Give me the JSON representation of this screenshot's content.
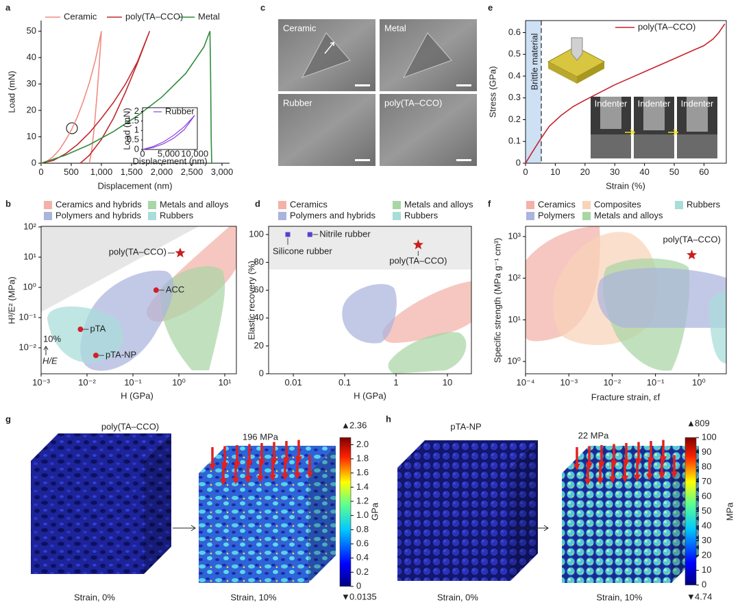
{
  "chart_data": [
    {
      "type": "line",
      "xlabel": "Displacement (nm)",
      "ylabel": "Load (mN)",
      "xlim": [
        0,
        3125
      ],
      "ylim": [
        0,
        54
      ],
      "xticks": [
        0,
        500,
        {
          "value": 1000,
          "label": "1,000"
        },
        {
          "value": 1500,
          "label": "1,500"
        },
        {
          "value": 2000,
          "label": "2,000"
        },
        {
          "value": 2500,
          "label": "2,500"
        },
        {
          "value": 3000,
          "label": "3,000"
        }
      ],
      "yticks": [
        0,
        10,
        20,
        30,
        40,
        50
      ],
      "series": [
        {
          "name": "Ceramic",
          "color": "#f08c82",
          "x": [
            0,
            100,
            200,
            300,
            400,
            500,
            600,
            700,
            800,
            900,
            1000,
            960,
            920,
            880,
            840,
            800
          ],
          "values": [
            0,
            0.8,
            2.5,
            5,
            8.5,
            12.5,
            17.5,
            23.5,
            30.5,
            39,
            50,
            36,
            24,
            13,
            5,
            0
          ]
        },
        {
          "name": "poly(TA–CCO)",
          "color": "#c0282d",
          "x": [
            0,
            200,
            400,
            600,
            800,
            1000,
            1200,
            1400,
            1600,
            1800,
            1600,
            1400,
            1200,
            1000,
            800,
            650
          ],
          "values": [
            0,
            1,
            3.5,
            7,
            11.5,
            17,
            23,
            30,
            38.5,
            50,
            38,
            27,
            17,
            9,
            3,
            0
          ]
        },
        {
          "name": "Metal",
          "color": "#2e8b3a",
          "x": [
            0,
            400,
            800,
            1200,
            1600,
            2000,
            2400,
            2700,
            2800,
            2810,
            2820,
            2830
          ],
          "values": [
            0,
            3,
            7,
            12,
            18,
            25,
            34,
            44,
            50,
            35,
            10,
            0
          ]
        }
      ]
    },
    {
      "type": "line",
      "xlabel": "Displacement (nm)",
      "ylabel": "Load (mN)",
      "xlim": [
        0,
        10500
      ],
      "ylim": [
        0,
        2.2
      ],
      "xticks": [
        0,
        {
          "value": 5000,
          "label": "5,000"
        },
        {
          "value": 10000,
          "label": "10,000"
        }
      ],
      "yticks": [
        0,
        0.5,
        1,
        1.5,
        2
      ],
      "series": [
        {
          "name": "Rubber",
          "color": "#8a3fe0",
          "x": [
            0,
            2000,
            4000,
            6000,
            8000,
            10000,
            8000,
            6000,
            4000,
            2000,
            0
          ],
          "values": [
            0,
            0.15,
            0.4,
            0.75,
            1.2,
            1.8,
            1.05,
            0.6,
            0.3,
            0.1,
            0
          ]
        }
      ]
    },
    {
      "type": "line",
      "xlabel": "Strain (%)",
      "ylabel": "Stress (GPa)",
      "xlim": [
        0,
        67.5
      ],
      "ylim": [
        0,
        0.655
      ],
      "xticks": [
        0,
        10,
        20,
        30,
        40,
        50,
        60
      ],
      "yticks": [
        0,
        0.1,
        0.2,
        0.3,
        0.4,
        0.5,
        0.6
      ],
      "annotations": [
        "Brittle material"
      ],
      "series": [
        {
          "name": "poly(TA–CCO)",
          "color": "#c8202a",
          "x": [
            0,
            2,
            5,
            8,
            12,
            16,
            20,
            25,
            30,
            35,
            40,
            45,
            50,
            55,
            60,
            63,
            65,
            67
          ],
          "values": [
            0,
            0.045,
            0.11,
            0.17,
            0.22,
            0.26,
            0.29,
            0.325,
            0.36,
            0.39,
            0.42,
            0.45,
            0.48,
            0.51,
            0.54,
            0.57,
            0.6,
            0.64
          ]
        }
      ]
    },
    {
      "type": "scatter",
      "xlabel": "H (GPa)",
      "ylabel": "H³/E² (MPa)",
      "xlog": true,
      "ylog": true,
      "xlim": [
        0.001,
        17.9
      ],
      "ylim": [
        0.00138,
        105
      ],
      "xticks": [
        {
          "value": 0.001,
          "label": "10⁻³"
        },
        {
          "value": 0.01,
          "label": "10⁻²"
        },
        {
          "value": 0.1,
          "label": "10⁻¹"
        },
        {
          "value": 1,
          "label": "10⁰"
        },
        {
          "value": 10,
          "label": "10¹"
        }
      ],
      "yticks": [
        {
          "value": 0.01,
          "label": "10⁻²"
        },
        {
          "value": 0.1,
          "label": "10⁻¹"
        },
        {
          "value": 1,
          "label": "10⁰"
        },
        {
          "value": 10,
          "label": "10¹"
        },
        {
          "value": 100,
          "label": "10²"
        }
      ],
      "regions": [
        {
          "name": "Ceramics and hybrids",
          "color": "#f3b1a8"
        },
        {
          "name": "Metals and alloys",
          "color": "#a9d6a5"
        },
        {
          "name": "Polymers and hybrids",
          "color": "#aab4dc"
        },
        {
          "name": "Rubbers",
          "color": "#a8ddd9"
        }
      ],
      "annotations": [
        "10%",
        "H/E"
      ],
      "points": [
        {
          "label": "pTA",
          "x": 0.0072,
          "y": 0.041,
          "color": "#d0202a",
          "marker": "circle"
        },
        {
          "label": "pTA-NP",
          "x": 0.0156,
          "y": 0.0056,
          "color": "#d0202a",
          "marker": "circle"
        },
        {
          "label": "ACC",
          "x": 0.32,
          "y": 0.81,
          "color": "#d0202a",
          "marker": "circle"
        },
        {
          "label": "poly(TA–CCO)",
          "x": 1.07,
          "y": 13.7,
          "color": "#c81e1e",
          "marker": "star"
        }
      ]
    },
    {
      "type": "scatter",
      "xlabel": "H (GPa)",
      "ylabel": "Elastic recovery (%)",
      "xlog": true,
      "xlim": [
        0.0033,
        29.3
      ],
      "ylim": [
        0,
        105.9
      ],
      "xticks": [
        0.01,
        0.1,
        1,
        10
      ],
      "yticks": [
        0,
        20,
        40,
        60,
        80,
        100
      ],
      "regions": [
        {
          "name": "Ceramics",
          "color": "#f3b1a8"
        },
        {
          "name": "Metals and alloys",
          "color": "#a9d6a5"
        },
        {
          "name": "Polymers and hybrids",
          "color": "#aab4dc"
        },
        {
          "name": "Rubbers",
          "color": "#a8ddd9"
        }
      ],
      "points": [
        {
          "label": "Silicone rubber",
          "x": 0.0078,
          "y": 100,
          "color": "#5a3fd0",
          "marker": "square"
        },
        {
          "label": "Nitrile rubber",
          "x": 0.021,
          "y": 100,
          "color": "#5a3fd0",
          "marker": "square"
        },
        {
          "label": "poly(TA–CCO)",
          "x": 2.7,
          "y": 92.6,
          "color": "#c81e1e",
          "marker": "star"
        }
      ]
    },
    {
      "type": "scatter",
      "xlabel": "Fracture strain, εf",
      "ylabel": "Specific strength (MPa g⁻¹ cm³)",
      "xlog": true,
      "ylog": true,
      "xlim": [
        0.0001,
        4.32
      ],
      "ylim": [
        0.507,
        1760
      ],
      "xticks": [
        {
          "value": 0.0001,
          "label": "10⁻⁴"
        },
        {
          "value": 0.001,
          "label": "10⁻³"
        },
        {
          "value": 0.01,
          "label": "10⁻²"
        },
        {
          "value": 0.1,
          "label": "10⁻¹"
        },
        {
          "value": 1,
          "label": "10⁰"
        }
      ],
      "yticks": [
        {
          "value": 1,
          "label": "10⁰"
        },
        {
          "value": 10,
          "label": "10¹"
        },
        {
          "value": 100,
          "label": "10²"
        },
        {
          "value": 1000,
          "label": "10³"
        }
      ],
      "regions": [
        {
          "name": "Ceramics",
          "color": "#f3b1a8"
        },
        {
          "name": "Composites",
          "color": "#f8d3b8"
        },
        {
          "name": "Rubbers",
          "color": "#a8ddd9"
        },
        {
          "name": "Polymers",
          "color": "#aab4dc"
        },
        {
          "name": "Metals and alloys",
          "color": "#a9d6a5"
        }
      ],
      "points": [
        {
          "label": "poly(TA–CCO)",
          "x": 0.69,
          "y": 360,
          "color": "#c81e1e",
          "marker": "star"
        }
      ]
    }
  ],
  "figure": {
    "panel_labels": [
      "a",
      "b",
      "c",
      "d",
      "e",
      "f",
      "g",
      "h"
    ],
    "micrographs": [
      "Ceramic",
      "Metal",
      "Rubber",
      "poly(TA–CCO)"
    ],
    "indenter_labels": [
      "Indenter",
      "Indenter",
      "Indenter"
    ],
    "simulations": [
      {
        "title": "poly(TA–CCO)",
        "stress": "196 MPa",
        "captions": [
          "Strain, 0%",
          "Strain, 10%"
        ],
        "colorbar": {
          "unit": "GPa",
          "max": 2.36,
          "min": 0.0135,
          "lim": [
            0,
            2.1
          ],
          "ticks": [
            0,
            0.2,
            0.4,
            0.6,
            0.8,
            {
              "value": 1,
              "label": "1.0"
            },
            1.2,
            1.4,
            1.6,
            1.8,
            {
              "value": 2,
              "label": "2.0"
            }
          ]
        }
      },
      {
        "title": "pTA-NP",
        "stress": "22 MPa",
        "captions": [
          "Strain, 0%",
          "Strain, 10%"
        ],
        "colorbar": {
          "unit": "MPa",
          "max": 809,
          "min": 4.74,
          "lim": [
            0,
            100
          ],
          "ticks": [
            0,
            10,
            20,
            30,
            40,
            50,
            60,
            70,
            80,
            90,
            100
          ]
        }
      }
    ]
  }
}
